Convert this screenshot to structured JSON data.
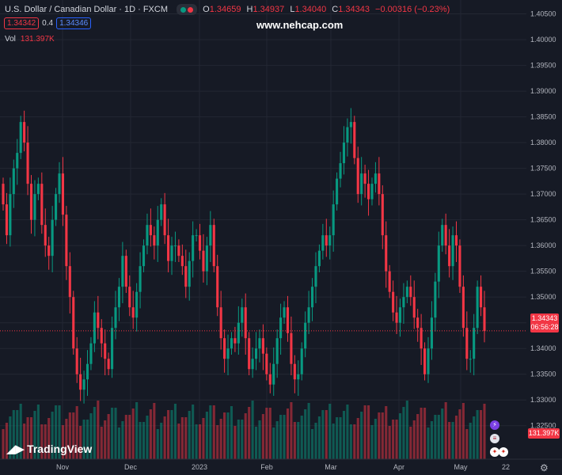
{
  "header": {
    "symbol": "U.S. Dollar / Canadian Dollar · 1D · FXCM",
    "o_label": "O",
    "o_value": "1.34659",
    "h_label": "H",
    "h_value": "1.34937",
    "l_label": "L",
    "l_value": "1.34040",
    "c_label": "C",
    "c_value": "1.34343",
    "change": "−0.00316 (−0.23%)",
    "status_colors": [
      "#089981",
      "#f23645"
    ]
  },
  "quote": {
    "bid": "1.34342",
    "spread": "0.4",
    "ask": "1.34346"
  },
  "volume": {
    "label": "Vol",
    "value": "131.397K"
  },
  "watermark": "www.nehcap.com",
  "logo": "TradingView",
  "logo_icon": "tradingview-logo-icon",
  "price_tag": {
    "price": "1.34343",
    "countdown": "06:56:28"
  },
  "volume_tag": "131.397K",
  "event_icons": [
    "lightning-icon",
    "us-flag-icon",
    "ca-flag-icon"
  ],
  "colors": {
    "up": "#089981",
    "down": "#f23645",
    "background": "#161a25",
    "axis_text": "#b2b5be"
  },
  "chart_data": {
    "type": "candlestick",
    "title": "U.S. Dollar / Canadian Dollar · 1D · FXCM",
    "y_ticks": [
      "1.40500",
      "1.40000",
      "1.39500",
      "1.39000",
      "1.38500",
      "1.38000",
      "1.37500",
      "1.37000",
      "1.36500",
      "1.36000",
      "1.35500",
      "1.35000",
      "1.34500",
      "1.34000",
      "1.33500",
      "1.33000",
      "1.32500"
    ],
    "ylim": [
      1.3185,
      1.4077
    ],
    "x_ticks": [
      "Nov",
      "Dec",
      "2023",
      "Feb",
      "Mar",
      "Apr",
      "May",
      "22"
    ],
    "last_price": 1.34343,
    "grid": true,
    "close": [
      1.368,
      1.362,
      1.37,
      1.375,
      1.378,
      1.384,
      1.38,
      1.372,
      1.365,
      1.37,
      1.372,
      1.364,
      1.36,
      1.358,
      1.365,
      1.37,
      1.374,
      1.366,
      1.356,
      1.35,
      1.34,
      1.335,
      1.332,
      1.334,
      1.337,
      1.341,
      1.347,
      1.344,
      1.341,
      1.338,
      1.336,
      1.344,
      1.348,
      1.352,
      1.358,
      1.352,
      1.348,
      1.346,
      1.351,
      1.356,
      1.36,
      1.364,
      1.362,
      1.36,
      1.365,
      1.368,
      1.362,
      1.357,
      1.36,
      1.36,
      1.358,
      1.356,
      1.352,
      1.357,
      1.362,
      1.362,
      1.359,
      1.355,
      1.36,
      1.364,
      1.356,
      1.348,
      1.342,
      1.338,
      1.34,
      1.342,
      1.341,
      1.345,
      1.348,
      1.342,
      1.336,
      1.338,
      1.34,
      1.342,
      1.339,
      1.335,
      1.333,
      1.337,
      1.342,
      1.346,
      1.348,
      1.343,
      1.337,
      1.334,
      1.335,
      1.34,
      1.345,
      1.348,
      1.352,
      1.356,
      1.359,
      1.362,
      1.36,
      1.362,
      1.368,
      1.373,
      1.376,
      1.38,
      1.383,
      1.384,
      1.377,
      1.37,
      1.374,
      1.372,
      1.369,
      1.372,
      1.374,
      1.37,
      1.362,
      1.355,
      1.351,
      1.347,
      1.345,
      1.348,
      1.35,
      1.352,
      1.35,
      1.346,
      1.344,
      1.34,
      1.335,
      1.34,
      1.346,
      1.353,
      1.36,
      1.364,
      1.36,
      1.356,
      1.362,
      1.36,
      1.352,
      1.344,
      1.338,
      1.338,
      1.344,
      1.352,
      1.348,
      1.3434
    ],
    "volume_estimated": true
  }
}
